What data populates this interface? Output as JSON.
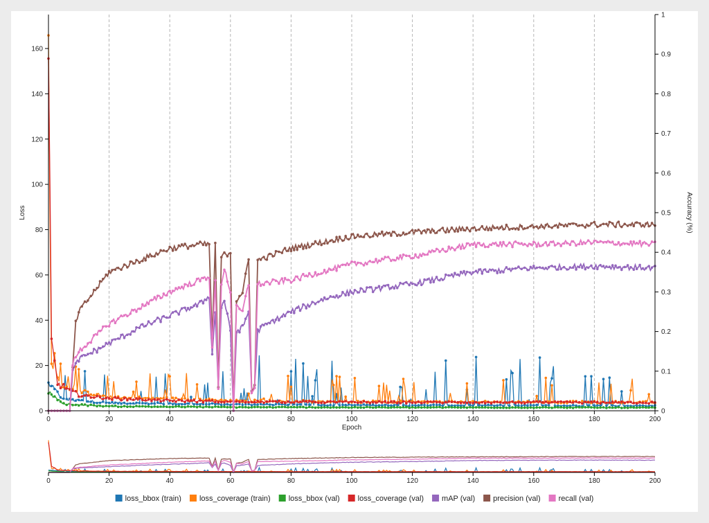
{
  "chart_data": {
    "type": "line",
    "x_label": "Epoch",
    "y_left_label": "Loss",
    "y_right_label": "Accuracy (%)",
    "x_range": [
      0,
      200
    ],
    "y_left_range": [
      0,
      175
    ],
    "y_right_range": [
      0,
      1
    ],
    "x_ticks": [
      "0",
      "20",
      "40",
      "60",
      "80",
      "100",
      "120",
      "140",
      "160",
      "180",
      "200"
    ],
    "y_left_ticks": [
      "0",
      "20",
      "40",
      "60",
      "80",
      "100",
      "120",
      "140",
      "160"
    ],
    "y_right_ticks": [
      "0",
      "0.1",
      "0.2",
      "0.3",
      "0.4",
      "0.5",
      "0.6",
      "0.7",
      "0.8",
      "0.9",
      "1"
    ],
    "vertical_grid_at": [
      20,
      40,
      60,
      80,
      100,
      120,
      140,
      160,
      180,
      200
    ],
    "legend_position": "bottom",
    "series": [
      {
        "name": "loss_bbox (train)",
        "color": "#1f77b4",
        "axis": "left",
        "keypoints": [
          [
            0,
            12
          ],
          [
            5,
            5
          ],
          [
            20,
            3.5
          ],
          [
            60,
            2.8
          ],
          [
            100,
            2.5
          ],
          [
            200,
            2.2
          ]
        ],
        "spikes": 22
      },
      {
        "name": "loss_coverage (train)",
        "color": "#ff7f0e",
        "axis": "left",
        "keypoints": [
          [
            0,
            160
          ],
          [
            1,
            20
          ],
          [
            5,
            10
          ],
          [
            20,
            6
          ],
          [
            60,
            4.5
          ],
          [
            100,
            4
          ],
          [
            200,
            3.8
          ]
        ],
        "spikes": 12
      },
      {
        "name": "loss_bbox (val)",
        "color": "#2ca02c",
        "axis": "left",
        "keypoints": [
          [
            0,
            8
          ],
          [
            5,
            3
          ],
          [
            20,
            2
          ],
          [
            60,
            1.6
          ],
          [
            100,
            1.5
          ],
          [
            200,
            1.4
          ]
        ]
      },
      {
        "name": "loss_coverage (val)",
        "color": "#d62728",
        "axis": "left",
        "keypoints": [
          [
            0,
            146
          ],
          [
            1,
            30
          ],
          [
            3,
            12
          ],
          [
            10,
            7
          ],
          [
            20,
            5.5
          ],
          [
            40,
            4.5
          ],
          [
            60,
            4
          ],
          [
            100,
            3.8
          ],
          [
            200,
            3.6
          ]
        ]
      },
      {
        "name": "mAP (val)",
        "color": "#9467bd",
        "axis": "right",
        "keypoints": [
          [
            0,
            0
          ],
          [
            7,
            0
          ],
          [
            8,
            0.1
          ],
          [
            10,
            0.13
          ],
          [
            20,
            0.17
          ],
          [
            30,
            0.21
          ],
          [
            40,
            0.24
          ],
          [
            50,
            0.27
          ],
          [
            53,
            0.29
          ],
          [
            54,
            0.14
          ],
          [
            55,
            0.25
          ],
          [
            56,
            0.06
          ],
          [
            57,
            0.26
          ],
          [
            58,
            0.28
          ],
          [
            59,
            0.24
          ],
          [
            60,
            0.2
          ],
          [
            61,
            0.0
          ],
          [
            62,
            0.2
          ],
          [
            64,
            0.21
          ],
          [
            66,
            0.25
          ],
          [
            67,
            0.05
          ],
          [
            68,
            0.06
          ],
          [
            69,
            0.2
          ],
          [
            70,
            0.21
          ],
          [
            80,
            0.25
          ],
          [
            90,
            0.28
          ],
          [
            100,
            0.3
          ],
          [
            120,
            0.32
          ],
          [
            140,
            0.35
          ],
          [
            160,
            0.36
          ],
          [
            180,
            0.365
          ],
          [
            200,
            0.36
          ]
        ]
      },
      {
        "name": "precision (val)",
        "color": "#8c564b",
        "axis": "right",
        "keypoints": [
          [
            0,
            0
          ],
          [
            7,
            0
          ],
          [
            9,
            0.22
          ],
          [
            10,
            0.25
          ],
          [
            20,
            0.35
          ],
          [
            30,
            0.38
          ],
          [
            40,
            0.41
          ],
          [
            50,
            0.42
          ],
          [
            53,
            0.42
          ],
          [
            54,
            0.18
          ],
          [
            55,
            0.42
          ],
          [
            56,
            0.06
          ],
          [
            57,
            0.39
          ],
          [
            60,
            0.4
          ],
          [
            61,
            0.01
          ],
          [
            62,
            0.28
          ],
          [
            64,
            0.3
          ],
          [
            66,
            0.38
          ],
          [
            67,
            0.05
          ],
          [
            68,
            0.07
          ],
          [
            69,
            0.38
          ],
          [
            80,
            0.41
          ],
          [
            100,
            0.44
          ],
          [
            120,
            0.45
          ],
          [
            140,
            0.46
          ],
          [
            160,
            0.465
          ],
          [
            180,
            0.47
          ],
          [
            200,
            0.47
          ]
        ]
      },
      {
        "name": "recall (val)",
        "color": "#e377c2",
        "axis": "right",
        "keypoints": [
          [
            0,
            0
          ],
          [
            7,
            0
          ],
          [
            8,
            0.12
          ],
          [
            10,
            0.15
          ],
          [
            20,
            0.22
          ],
          [
            30,
            0.26
          ],
          [
            40,
            0.3
          ],
          [
            50,
            0.33
          ],
          [
            53,
            0.34
          ],
          [
            54,
            0.16
          ],
          [
            55,
            0.33
          ],
          [
            56,
            0.05
          ],
          [
            57,
            0.32
          ],
          [
            58,
            0.36
          ],
          [
            60,
            0.3
          ],
          [
            61,
            0.0
          ],
          [
            62,
            0.26
          ],
          [
            64,
            0.25
          ],
          [
            66,
            0.32
          ],
          [
            67,
            0.05
          ],
          [
            68,
            0.06
          ],
          [
            69,
            0.32
          ],
          [
            80,
            0.33
          ],
          [
            90,
            0.35
          ],
          [
            100,
            0.37
          ],
          [
            120,
            0.39
          ],
          [
            140,
            0.42
          ],
          [
            160,
            0.42
          ],
          [
            180,
            0.425
          ],
          [
            200,
            0.42
          ]
        ]
      }
    ],
    "navigator": {
      "x_ticks": [
        "0",
        "20",
        "40",
        "60",
        "80",
        "100",
        "120",
        "140",
        "160",
        "180",
        "200"
      ]
    }
  }
}
